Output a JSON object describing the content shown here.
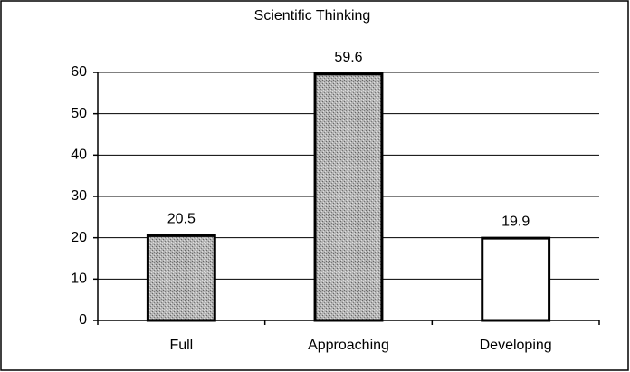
{
  "chart_data": {
    "type": "bar",
    "title": "Scientific Thinking",
    "categories": [
      "Full",
      "Approaching",
      "Developing"
    ],
    "values": [
      20.5,
      59.6,
      19.9
    ],
    "colors": [
      "#a9a9a9",
      "#a9a9a9",
      "#ffffff"
    ],
    "ylim": [
      0,
      60
    ],
    "yticks": [
      0,
      10,
      20,
      30,
      40,
      50,
      60
    ],
    "grid": true
  }
}
